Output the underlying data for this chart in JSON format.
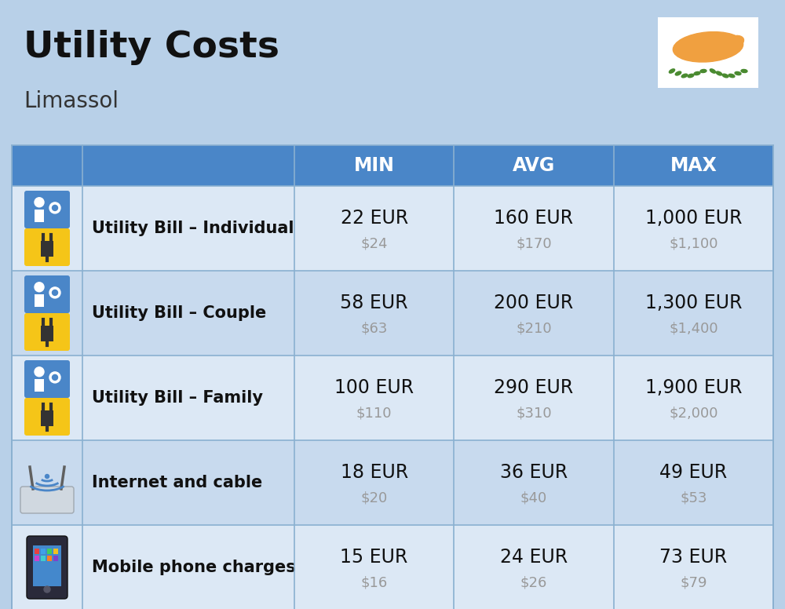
{
  "title": "Utility Costs",
  "subtitle": "Limassol",
  "background_color": "#b8d0e8",
  "header_color": "#4a86c8",
  "header_text_color": "#ffffff",
  "row_color_odd": "#dce8f5",
  "row_color_even": "#c8daee",
  "grid_color": "#8ab0d0",
  "col_header_labels": [
    "MIN",
    "AVG",
    "MAX"
  ],
  "rows": [
    {
      "label": "Utility Bill – Individual",
      "min_eur": "22 EUR",
      "min_usd": "$24",
      "avg_eur": "160 EUR",
      "avg_usd": "$170",
      "max_eur": "1,000 EUR",
      "max_usd": "$1,100"
    },
    {
      "label": "Utility Bill – Couple",
      "min_eur": "58 EUR",
      "min_usd": "$63",
      "avg_eur": "200 EUR",
      "avg_usd": "$210",
      "max_eur": "1,300 EUR",
      "max_usd": "$1,400"
    },
    {
      "label": "Utility Bill – Family",
      "min_eur": "100 EUR",
      "min_usd": "$110",
      "avg_eur": "290 EUR",
      "avg_usd": "$310",
      "max_eur": "1,900 EUR",
      "max_usd": "$2,000"
    },
    {
      "label": "Internet and cable",
      "min_eur": "18 EUR",
      "min_usd": "$20",
      "avg_eur": "36 EUR",
      "avg_usd": "$40",
      "max_eur": "49 EUR",
      "max_usd": "$53"
    },
    {
      "label": "Mobile phone charges",
      "min_eur": "15 EUR",
      "min_usd": "$16",
      "avg_eur": "24 EUR",
      "avg_usd": "$26",
      "max_eur": "73 EUR",
      "max_usd": "$79"
    }
  ],
  "title_fontsize": 34,
  "subtitle_fontsize": 20,
  "header_fontsize": 17,
  "label_fontsize": 15,
  "value_fontsize": 17,
  "usd_fontsize": 13,
  "usd_color": "#999999",
  "flag_color": "#ffffff",
  "cyprus_color": "#f0a040",
  "branch_color": "#4a8a30"
}
